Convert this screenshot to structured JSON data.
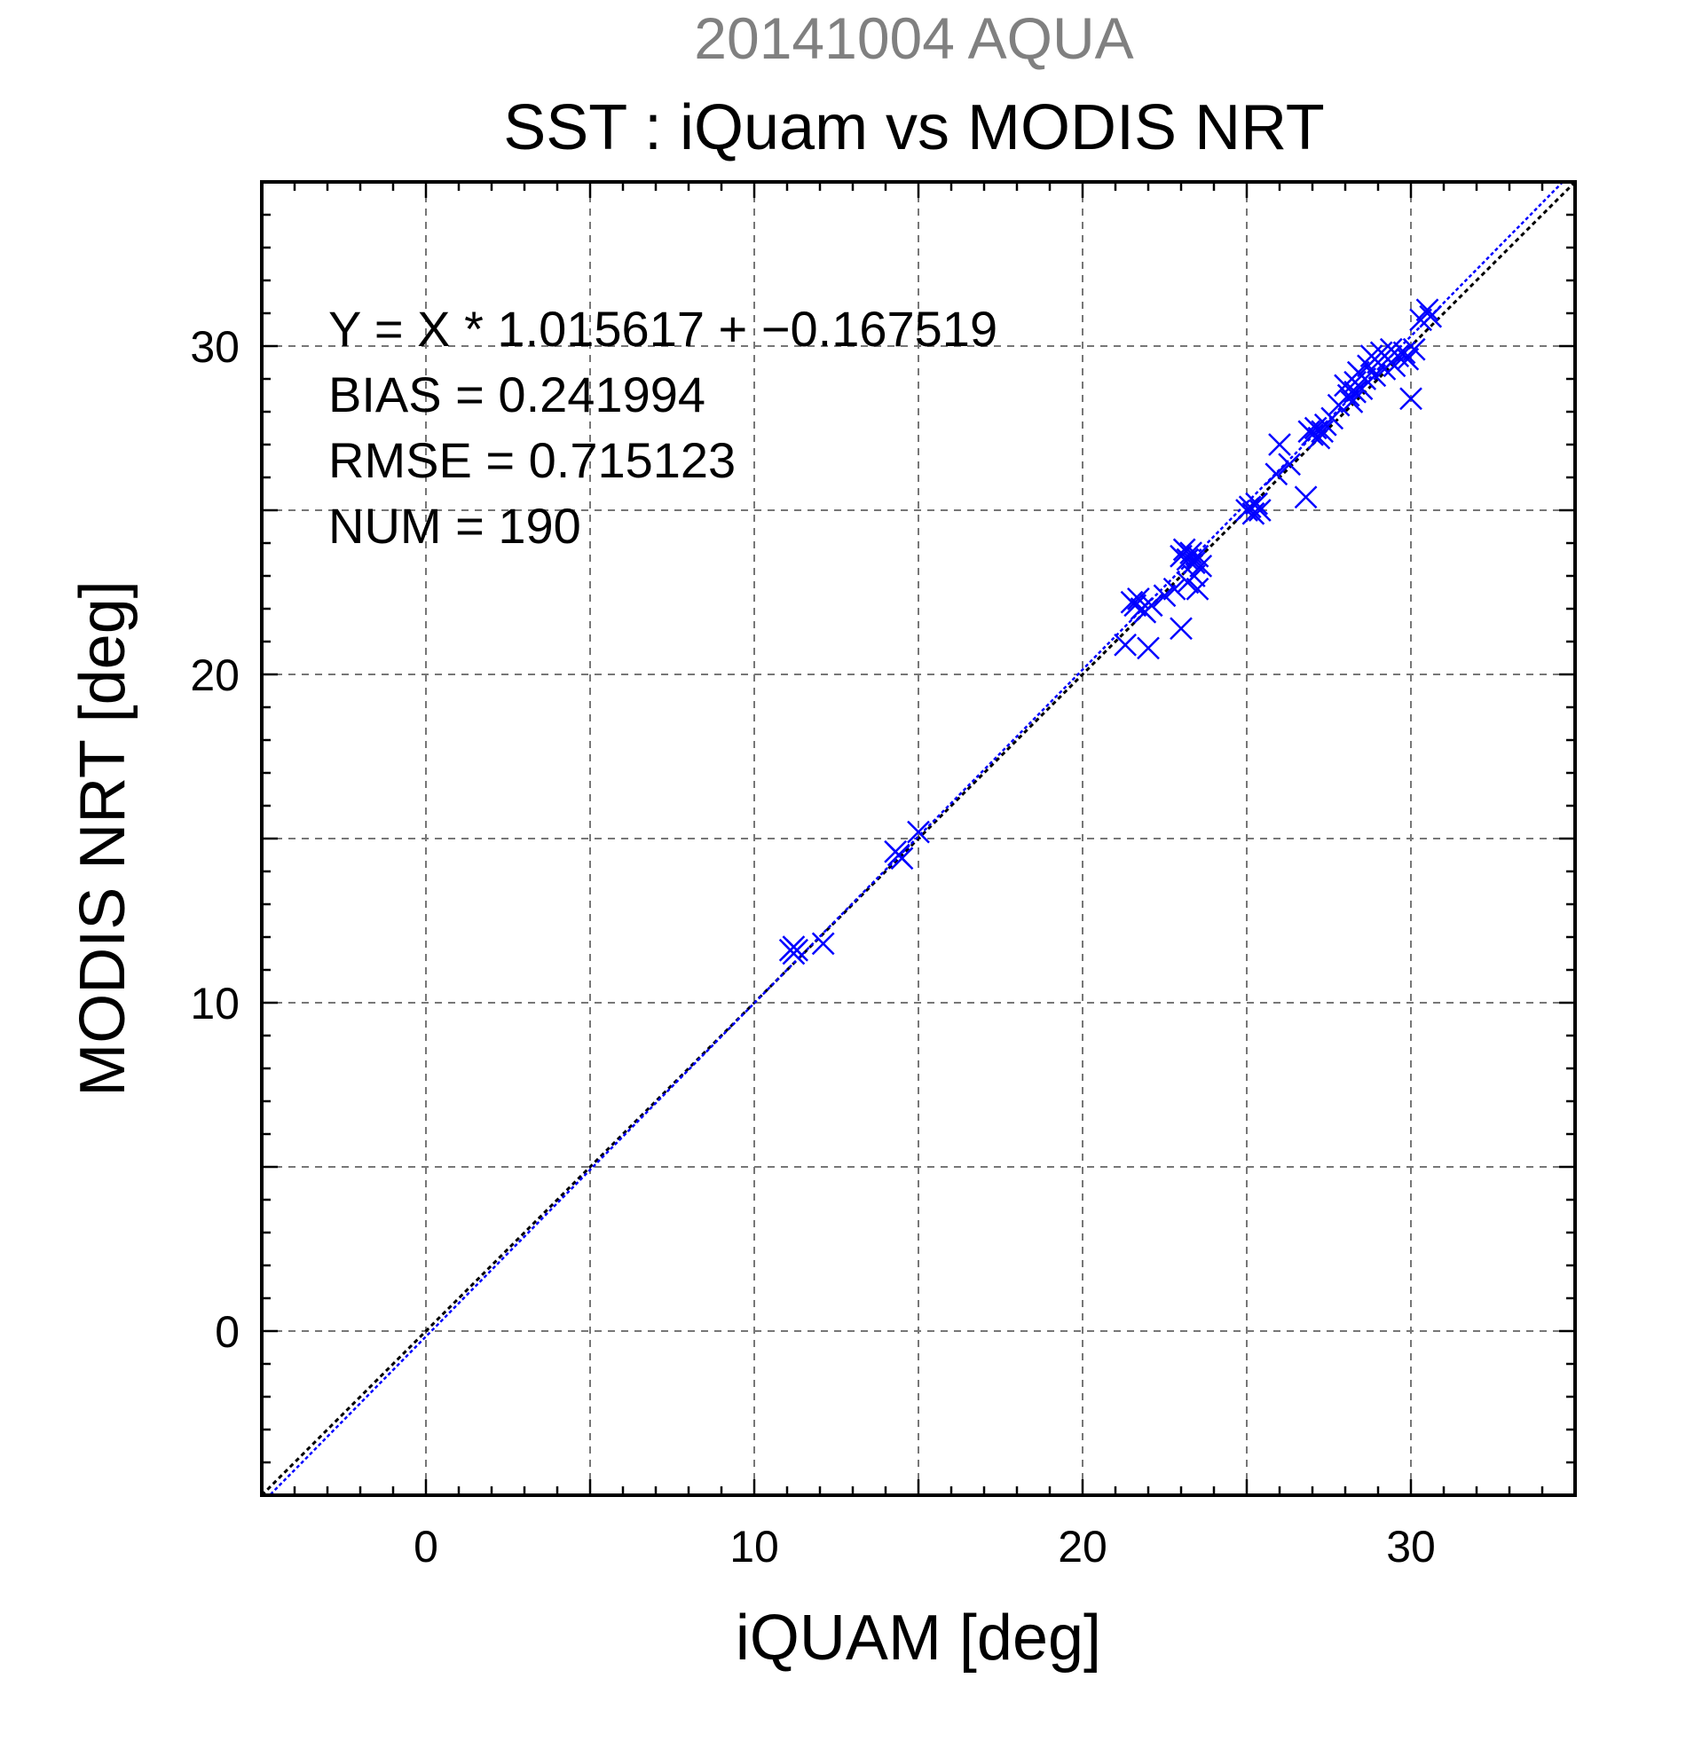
{
  "chart_data": {
    "type": "scatter",
    "supertitle": "20141004 AQUA",
    "title": "SST : iQuam vs MODIS NRT",
    "xlabel": "iQUAM [deg]",
    "ylabel": "MODIS NRT [deg]",
    "xlim": [
      -5,
      35
    ],
    "ylim": [
      -5,
      35
    ],
    "xticks": [
      0,
      10,
      20,
      30
    ],
    "yticks": [
      0,
      10,
      20,
      30
    ],
    "grid": true,
    "stats": [
      "Y = X * 1.015617 + −0.167519",
      "BIAS = 0.241994",
      "RMSE = 0.715123",
      "NUM = 190"
    ],
    "regression": {
      "slope": 1.015617,
      "intercept": -0.167519,
      "color": "#0000ff"
    },
    "identity_line_color": "#000000",
    "marker": "x",
    "marker_color": "#0000ff",
    "points": [
      [
        11.1,
        11.6
      ],
      [
        11.2,
        11.5
      ],
      [
        11.3,
        11.6
      ],
      [
        11.2,
        11.7
      ],
      [
        12.1,
        11.8
      ],
      [
        14.3,
        14.6
      ],
      [
        14.4,
        14.5
      ],
      [
        14.5,
        14.4
      ],
      [
        15.0,
        15.2
      ],
      [
        21.3,
        20.9
      ],
      [
        21.5,
        22.2
      ],
      [
        21.6,
        22.1
      ],
      [
        21.7,
        22.3
      ],
      [
        21.8,
        22.0
      ],
      [
        21.9,
        21.9
      ],
      [
        22.0,
        20.8
      ],
      [
        22.1,
        22.1
      ],
      [
        22.5,
        22.4
      ],
      [
        22.8,
        22.6
      ],
      [
        23.0,
        21.4
      ],
      [
        23.0,
        23.6
      ],
      [
        23.1,
        23.8
      ],
      [
        23.2,
        23.5
      ],
      [
        23.3,
        23.7
      ],
      [
        23.4,
        23.4
      ],
      [
        23.5,
        23.6
      ],
      [
        23.2,
        22.8
      ],
      [
        23.4,
        23.0
      ],
      [
        23.5,
        22.6
      ],
      [
        23.6,
        23.3
      ],
      [
        25.0,
        25.0
      ],
      [
        25.1,
        25.1
      ],
      [
        25.2,
        24.9
      ],
      [
        25.3,
        25.2
      ],
      [
        25.4,
        25.0
      ],
      [
        25.9,
        26.1
      ],
      [
        26.0,
        27.0
      ],
      [
        26.3,
        26.4
      ],
      [
        26.8,
        25.4
      ],
      [
        26.9,
        27.4
      ],
      [
        27.0,
        27.3
      ],
      [
        27.1,
        27.5
      ],
      [
        27.2,
        27.2
      ],
      [
        27.3,
        27.4
      ],
      [
        27.4,
        27.6
      ],
      [
        27.6,
        27.8
      ],
      [
        27.8,
        28.2
      ],
      [
        28.0,
        28.8
      ],
      [
        28.1,
        28.5
      ],
      [
        28.2,
        28.3
      ],
      [
        28.3,
        28.6
      ],
      [
        28.3,
        28.9
      ],
      [
        28.4,
        29.2
      ],
      [
        28.5,
        28.7
      ],
      [
        28.6,
        29.0
      ],
      [
        28.7,
        29.4
      ],
      [
        28.8,
        29.7
      ],
      [
        28.9,
        29.1
      ],
      [
        29.0,
        29.5
      ],
      [
        29.1,
        29.8
      ],
      [
        29.2,
        29.3
      ],
      [
        29.3,
        29.6
      ],
      [
        29.4,
        29.9
      ],
      [
        29.5,
        29.4
      ],
      [
        29.6,
        29.7
      ],
      [
        29.8,
        29.8
      ],
      [
        29.9,
        29.6
      ],
      [
        30.0,
        28.4
      ],
      [
        30.1,
        29.9
      ],
      [
        30.3,
        30.8
      ],
      [
        30.5,
        31.1
      ],
      [
        30.6,
        30.9
      ]
    ]
  }
}
